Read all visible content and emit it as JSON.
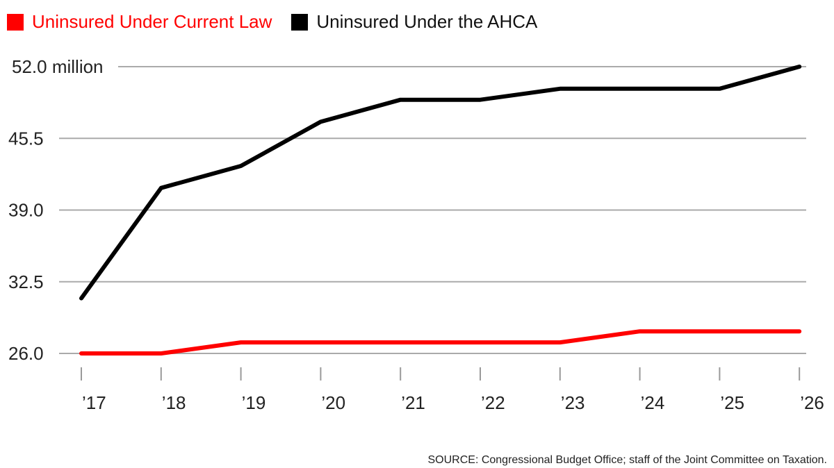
{
  "legend": {
    "items": [
      {
        "label": "Uninsured Under Current Law",
        "color": "#ff0000"
      },
      {
        "label": "Uninsured Under the AHCA",
        "color": "#000000"
      }
    ]
  },
  "source_note": "SOURCE: Congressional Budget Office; staff of the Joint Committee on Taxation.",
  "chart_data": {
    "type": "line",
    "title": "",
    "xlabel": "",
    "ylabel": "",
    "x": [
      "’17",
      "’18",
      "’19",
      "’20",
      "’21",
      "’22",
      "’23",
      "’24",
      "’25",
      "’26"
    ],
    "ylim": [
      26.0,
      52.0
    ],
    "y_ticks": [
      {
        "value": 52.0,
        "label": "52.0 million"
      },
      {
        "value": 45.5,
        "label": "45.5"
      },
      {
        "value": 39.0,
        "label": "39.0"
      },
      {
        "value": 32.5,
        "label": "32.5"
      },
      {
        "value": 26.0,
        "label": "26.0"
      }
    ],
    "grid": true,
    "legend_position": "top-left",
    "series": [
      {
        "name": "Uninsured Under Current Law",
        "color": "#ff0000",
        "values": [
          26,
          26,
          27,
          27,
          27,
          27,
          27,
          28,
          28,
          28
        ]
      },
      {
        "name": "Uninsured Under the AHCA",
        "color": "#000000",
        "values": [
          31,
          41,
          43,
          47,
          49,
          49,
          50,
          50,
          50,
          52
        ]
      }
    ]
  }
}
